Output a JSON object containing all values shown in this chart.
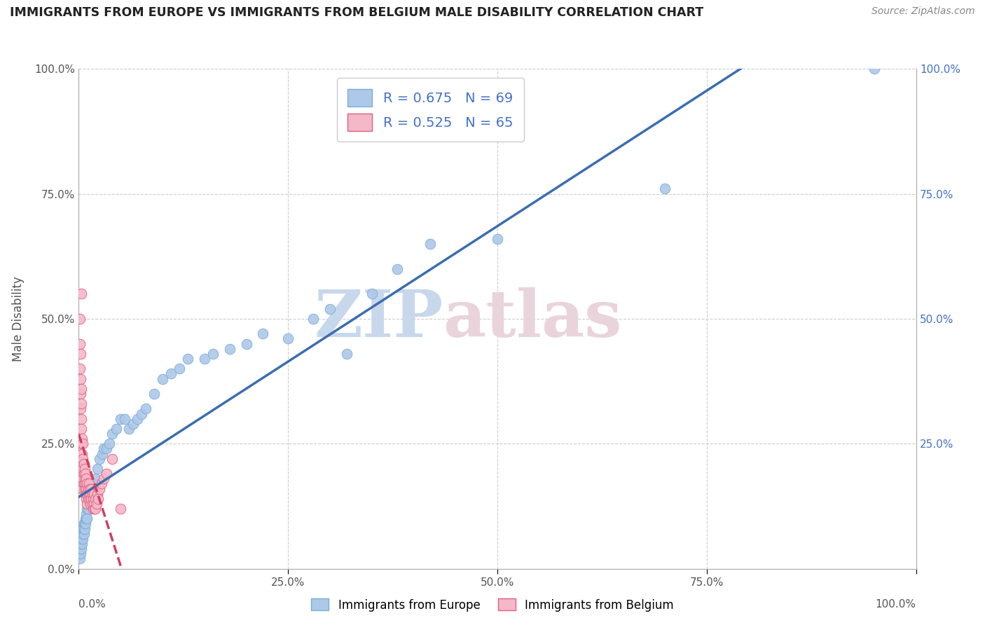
{
  "title": "IMMIGRANTS FROM EUROPE VS IMMIGRANTS FROM BELGIUM MALE DISABILITY CORRELATION CHART",
  "source": "Source: ZipAtlas.com",
  "ylabel": "Male Disability",
  "series": [
    {
      "name": "Immigrants from Europe",
      "color": "#adc8e8",
      "edge_color": "#7aaed6",
      "R": 0.675,
      "N": 69,
      "trend_color": "#3c6db0",
      "trend_style": "solid",
      "x": [
        0.001,
        0.001,
        0.002,
        0.002,
        0.002,
        0.003,
        0.003,
        0.003,
        0.004,
        0.004,
        0.004,
        0.005,
        0.005,
        0.005,
        0.006,
        0.006,
        0.006,
        0.007,
        0.007,
        0.008,
        0.008,
        0.009,
        0.009,
        0.01,
        0.01,
        0.011,
        0.012,
        0.013,
        0.014,
        0.015,
        0.016,
        0.017,
        0.018,
        0.02,
        0.022,
        0.025,
        0.028,
        0.03,
        0.033,
        0.036,
        0.04,
        0.045,
        0.05,
        0.055,
        0.06,
        0.065,
        0.07,
        0.075,
        0.08,
        0.09,
        0.1,
        0.11,
        0.12,
        0.13,
        0.15,
        0.16,
        0.18,
        0.2,
        0.22,
        0.25,
        0.28,
        0.3,
        0.32,
        0.35,
        0.38,
        0.42,
        0.5,
        0.7,
        0.95
      ],
      "y": [
        0.02,
        0.03,
        0.03,
        0.04,
        0.05,
        0.04,
        0.05,
        0.06,
        0.05,
        0.06,
        0.07,
        0.06,
        0.07,
        0.08,
        0.07,
        0.08,
        0.09,
        0.08,
        0.09,
        0.09,
        0.1,
        0.1,
        0.11,
        0.1,
        0.12,
        0.12,
        0.13,
        0.14,
        0.13,
        0.14,
        0.15,
        0.16,
        0.17,
        0.18,
        0.2,
        0.22,
        0.23,
        0.24,
        0.24,
        0.25,
        0.27,
        0.28,
        0.3,
        0.3,
        0.28,
        0.29,
        0.3,
        0.31,
        0.32,
        0.35,
        0.38,
        0.39,
        0.4,
        0.42,
        0.42,
        0.43,
        0.44,
        0.45,
        0.47,
        0.46,
        0.5,
        0.52,
        0.43,
        0.55,
        0.6,
        0.65,
        0.66,
        0.76,
        1.0
      ]
    },
    {
      "name": "Immigrants from Belgium",
      "color": "#f4b8c8",
      "edge_color": "#e06080",
      "R": 0.525,
      "N": 65,
      "trend_color": "#d04060",
      "trend_style": "dashed",
      "x": [
        0.001,
        0.001,
        0.001,
        0.002,
        0.002,
        0.002,
        0.002,
        0.003,
        0.003,
        0.003,
        0.003,
        0.003,
        0.004,
        0.004,
        0.004,
        0.004,
        0.005,
        0.005,
        0.005,
        0.005,
        0.006,
        0.006,
        0.006,
        0.007,
        0.007,
        0.007,
        0.008,
        0.008,
        0.008,
        0.009,
        0.009,
        0.009,
        0.01,
        0.01,
        0.01,
        0.011,
        0.011,
        0.012,
        0.012,
        0.013,
        0.013,
        0.014,
        0.014,
        0.015,
        0.015,
        0.016,
        0.016,
        0.017,
        0.017,
        0.018,
        0.018,
        0.019,
        0.02,
        0.02,
        0.021,
        0.022,
        0.023,
        0.025,
        0.027,
        0.03,
        0.033,
        0.04,
        0.05,
        0.005,
        0.003
      ],
      "y": [
        0.5,
        0.45,
        0.4,
        0.43,
        0.38,
        0.35,
        0.32,
        0.36,
        0.33,
        0.3,
        0.28,
        0.25,
        0.26,
        0.23,
        0.21,
        0.19,
        0.22,
        0.2,
        0.18,
        0.16,
        0.21,
        0.19,
        0.17,
        0.2,
        0.18,
        0.16,
        0.19,
        0.17,
        0.15,
        0.18,
        0.16,
        0.14,
        0.17,
        0.15,
        0.13,
        0.16,
        0.14,
        0.17,
        0.15,
        0.16,
        0.14,
        0.15,
        0.13,
        0.16,
        0.14,
        0.15,
        0.13,
        0.14,
        0.12,
        0.15,
        0.13,
        0.12,
        0.14,
        0.12,
        0.13,
        0.15,
        0.14,
        0.16,
        0.17,
        0.18,
        0.19,
        0.22,
        0.12,
        0.25,
        0.55
      ]
    }
  ],
  "xlim": [
    0,
    1.0
  ],
  "ylim": [
    0,
    1.0
  ],
  "xticks": [
    0,
    0.25,
    0.5,
    0.75,
    1.0
  ],
  "yticks": [
    0,
    0.25,
    0.5,
    0.75,
    1.0
  ],
  "left_ytick_labels": [
    "0.0%",
    "25.0%",
    "50.0%",
    "75.0%",
    "100.0%"
  ],
  "right_ytick_labels": [
    "",
    "25.0%",
    "50.0%",
    "75.0%",
    "100.0%"
  ],
  "xtick_labels_mid": [
    "25.0%",
    "50.0%",
    "75.0%"
  ],
  "grid_color": "#cccccc",
  "bg_color": "#ffffff",
  "watermark_blue": "#c8d8ec",
  "watermark_pink": "#ead4dc"
}
